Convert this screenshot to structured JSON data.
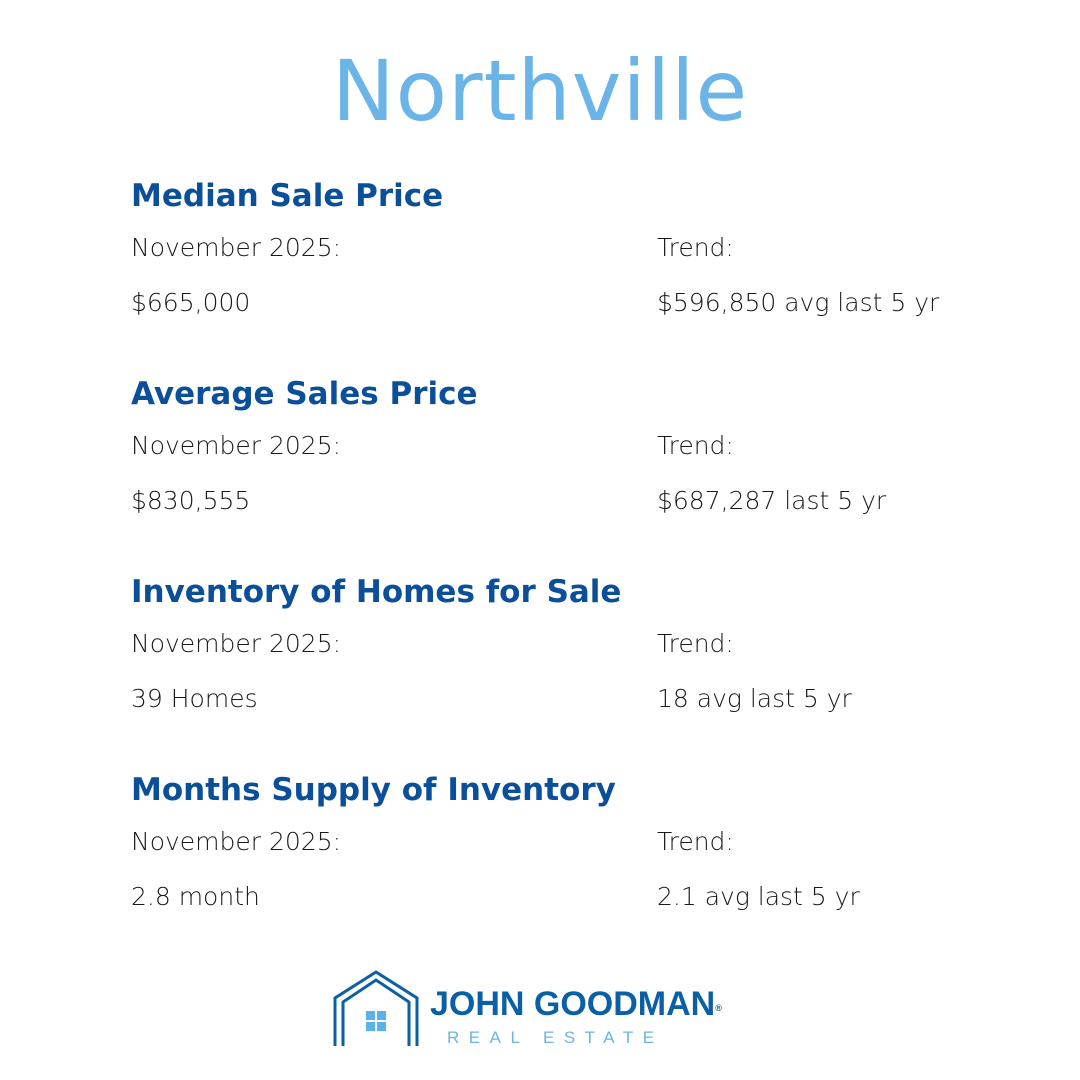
{
  "title": "Northville",
  "sections": [
    {
      "heading": "Median Sale Price",
      "current_label": "November 2025:",
      "current_value": "$665,000",
      "trend_label": "Trend:",
      "trend_value": "$596,850 avg last 5 yr"
    },
    {
      "heading": "Average Sales Price",
      "current_label": "November 2025:",
      "current_value": "$830,555",
      "trend_label": "Trend:",
      "trend_value": "$687,287 last 5 yr"
    },
    {
      "heading": "Inventory of Homes for Sale",
      "current_label": "November 2025:",
      "current_value": "39 Homes",
      "trend_label": "Trend:",
      "trend_value": "18 avg last 5 yr"
    },
    {
      "heading": "Months Supply of Inventory",
      "current_label": "November 2025:",
      "current_value": "2.8 month",
      "trend_label": "Trend:",
      "trend_value": "2.1 avg last 5 yr"
    }
  ],
  "logo": {
    "name": "JOHN GOODMAN",
    "registered": "®",
    "subtitle": "REAL ESTATE",
    "icon": "house-icon"
  },
  "colors": {
    "title": "#6ab4e8",
    "heading": "#0b4f9a",
    "brand_dark": "#0b5fa5",
    "brand_light": "#6ab4e8"
  }
}
